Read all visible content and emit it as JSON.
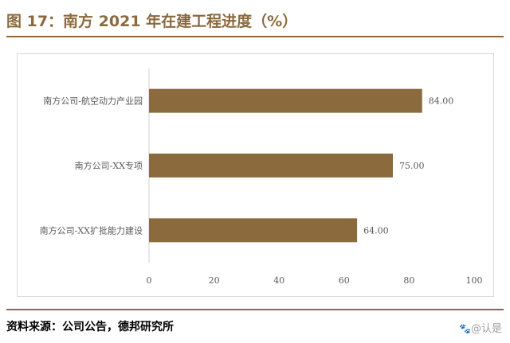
{
  "header": {
    "title": "图 17：南方 2021 年在建工程进度（%）"
  },
  "footer": {
    "source": "资料来源：公司公告，德邦研究所",
    "watermark": "@认是",
    "watermark_icon": "paw-icon"
  },
  "colors": {
    "accent": "#8B6A3E",
    "bar": "#8B6A3E",
    "axis": "#d0d0d0",
    "text": "#595959"
  },
  "chart_data": {
    "type": "bar",
    "orientation": "horizontal",
    "categories": [
      "南方公司-航空动力产业园",
      "南方公司-XX专项",
      "南方公司-XX扩批能力建设"
    ],
    "values": [
      84.0,
      75.0,
      64.0
    ],
    "value_labels": [
      "84.00",
      "75.00",
      "64.00"
    ],
    "xlim": [
      0,
      100
    ],
    "xticks": [
      0,
      20,
      40,
      60,
      80,
      100
    ],
    "grid": false,
    "legend": "none"
  }
}
